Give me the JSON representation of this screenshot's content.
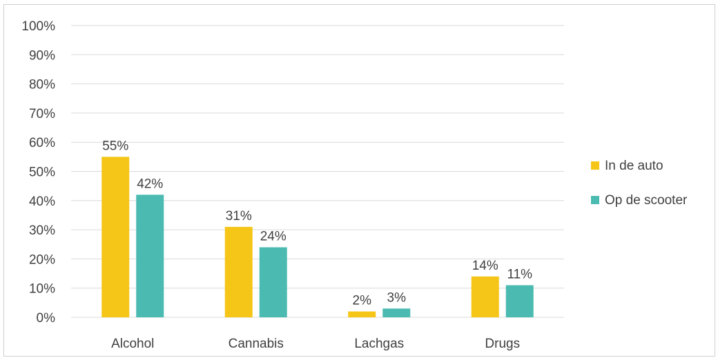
{
  "chart_data": {
    "type": "bar",
    "categories": [
      "Alcohol",
      "Cannabis",
      "Lachgas",
      "Drugs"
    ],
    "series": [
      {
        "name": "In de auto",
        "values": [
          55,
          31,
          2,
          14
        ],
        "color": "#f5c518"
      },
      {
        "name": "Op de scooter",
        "values": [
          42,
          24,
          3,
          11
        ],
        "color": "#4bbbb1"
      }
    ],
    "ylim": [
      0,
      100
    ],
    "yticks": [
      0,
      10,
      20,
      30,
      40,
      50,
      60,
      70,
      80,
      90,
      100
    ],
    "tick_suffix": "%",
    "value_suffix": "%",
    "grid": true,
    "legend_position": "right",
    "gridline_color": "#d9d9d9"
  }
}
